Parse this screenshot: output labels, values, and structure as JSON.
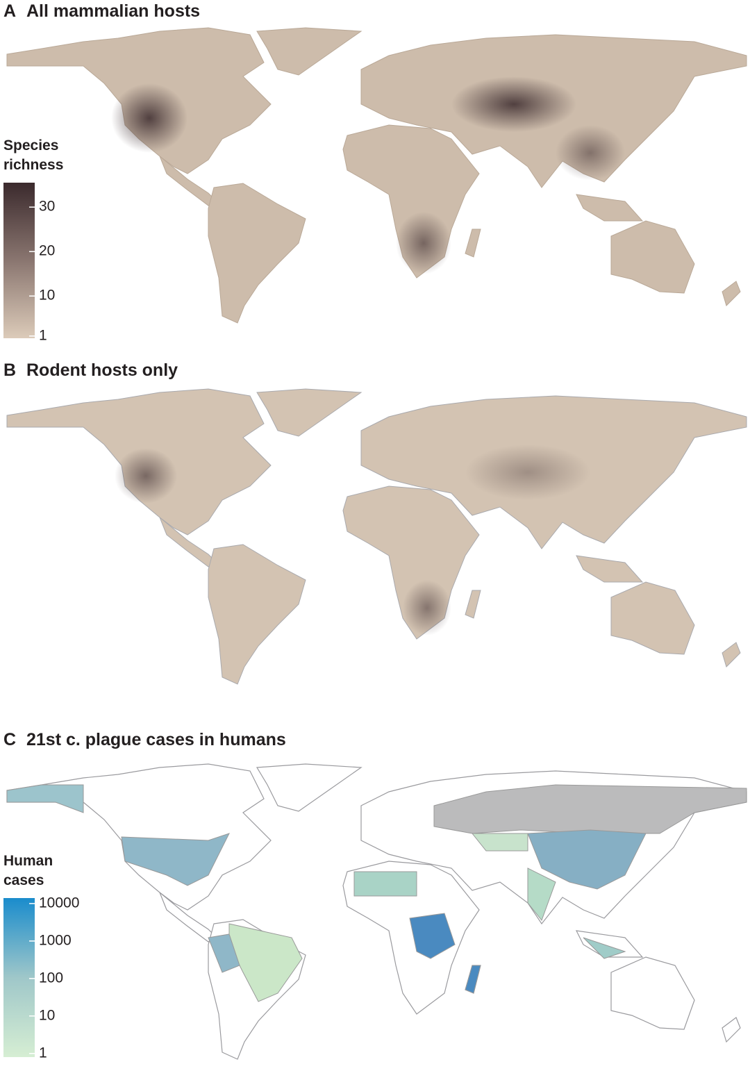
{
  "panels": [
    {
      "label": "A",
      "title": "All mammalian hosts",
      "legend": {
        "title": [
          "Species",
          "richness"
        ],
        "ticks": [
          1,
          10,
          20,
          30
        ],
        "lim": [
          0.5,
          35.5
        ],
        "scale": "linear",
        "colors": [
          "#dccbb9",
          "#8a7670",
          "#3b2a2d"
        ]
      }
    },
    {
      "label": "B",
      "title": "Rodent hosts only"
    },
    {
      "label": "C",
      "title": "21st c. plague cases in humans",
      "legend": {
        "title": [
          "Human",
          "cases"
        ],
        "ticks": [
          1,
          10,
          100,
          1000,
          10000
        ],
        "lim": [
          0.8,
          14000
        ],
        "scale": "log",
        "colors": [
          "#d6eed3",
          "#9fc7c9",
          "#1a8ccc"
        ]
      }
    }
  ]
}
